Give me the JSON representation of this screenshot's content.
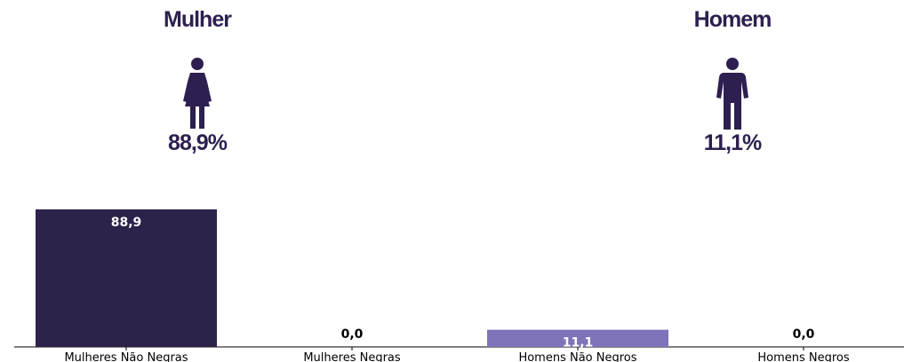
{
  "panels": {
    "female": {
      "title": "Mulher",
      "percent": "88,9%",
      "icon": "woman-icon"
    },
    "male": {
      "title": "Homem",
      "percent": "11,1%",
      "icon": "man-icon"
    }
  },
  "chart_data": {
    "type": "bar",
    "categories": [
      "Mulheres Não Negras",
      "Mulheres Negras",
      "Homens Não Negros",
      "Homens Negros"
    ],
    "values": [
      88.9,
      0.0,
      11.1,
      0.0
    ],
    "value_labels": [
      "88,9",
      "0,0",
      "11,1",
      "0,0"
    ],
    "colors": [
      "#2d2249",
      "#2d2249",
      "#7f73b9",
      "#7f73b9"
    ],
    "title": "",
    "xlabel": "",
    "ylabel": "",
    "ylim": [
      0,
      88.9
    ],
    "grid": false
  },
  "colors": {
    "text_dark": "#2d1f4f",
    "bar_women": "#2d2249",
    "bar_men": "#7f73b9"
  }
}
